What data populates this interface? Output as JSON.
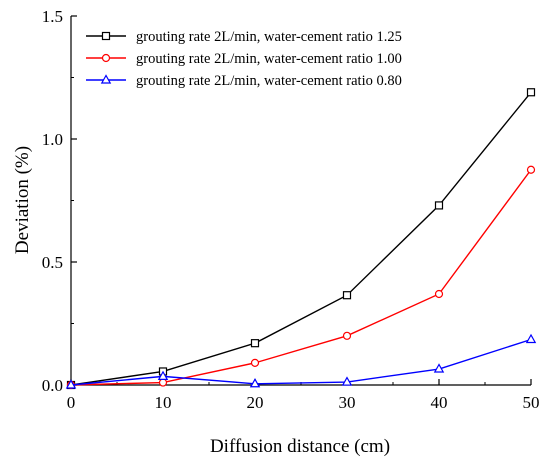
{
  "chart_data": {
    "type": "line",
    "xlabel": "Diffusion distance (cm)",
    "ylabel": "Deviation (%)",
    "xlim": [
      0,
      50
    ],
    "ylim": [
      0,
      1.5
    ],
    "xticks": [
      0,
      10,
      20,
      30,
      40,
      50
    ],
    "xtick_labels": [
      "0",
      "10",
      "20",
      "30",
      "40",
      "50"
    ],
    "yticks": [
      0,
      0.5,
      1.0,
      1.5
    ],
    "ytick_labels": [
      "0.0",
      "0.5",
      "1.0",
      "1.5"
    ],
    "grid": false,
    "legend_position": "top-left",
    "x": [
      0,
      10,
      20,
      30,
      40,
      50
    ],
    "series": [
      {
        "name": "grouting rate 2L/min, water-cement ratio 1.25",
        "color": "#000000",
        "marker": "square",
        "values": [
          0.0,
          0.055,
          0.17,
          0.365,
          0.73,
          1.19
        ]
      },
      {
        "name": "grouting rate 2L/min, water-cement ratio 1.00",
        "color": "#ff0000",
        "marker": "circle",
        "values": [
          0.0,
          0.01,
          0.09,
          0.2,
          0.37,
          0.875
        ]
      },
      {
        "name": "grouting rate 2L/min, water-cement ratio 0.80",
        "color": "#0000ff",
        "marker": "triangle",
        "values": [
          0.0,
          0.035,
          0.005,
          0.012,
          0.065,
          0.185
        ]
      }
    ]
  }
}
